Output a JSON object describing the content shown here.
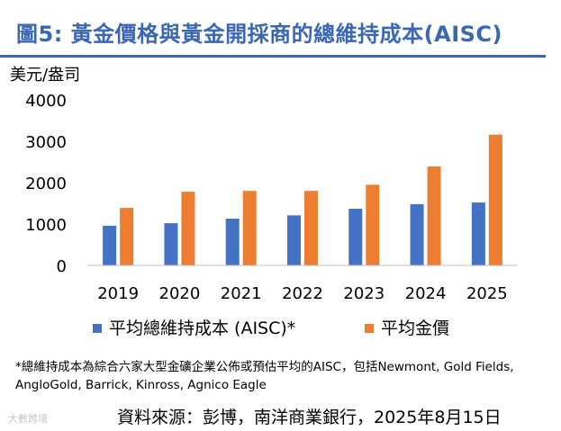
{
  "header": {
    "title": "圖5: 黃金價格與黃金開採商的總維持成本(AISC)"
  },
  "chart_data": {
    "type": "bar",
    "ylabel": "美元/盎司",
    "categories": [
      "2019",
      "2020",
      "2021",
      "2022",
      "2023",
      "2024",
      "2025"
    ],
    "series": [
      {
        "name": "平均總維持成本 (AISC)*",
        "values": [
          960,
          1020,
          1130,
          1210,
          1370,
          1480,
          1520
        ],
        "color": "#4472c4"
      },
      {
        "name": "平均金價",
        "values": [
          1390,
          1780,
          1800,
          1800,
          1950,
          2390,
          3160
        ],
        "color": "#ed7d31"
      }
    ],
    "ylim": [
      0,
      4000
    ],
    "yticks": [
      4000,
      3000,
      2000,
      1000,
      0
    ],
    "grid": false,
    "legend": "bottom"
  },
  "footer": {
    "note": "*總維持成本為綜合六家大型金礦企業公佈或預估平均的AISC，包括Newmont, Gold Fields, AngloGold, Barrick, Kinross, Agnico Eagle",
    "source": "資料來源：彭博，南洋商業銀行，2025年8月15日",
    "watermark": "大數跨境"
  }
}
